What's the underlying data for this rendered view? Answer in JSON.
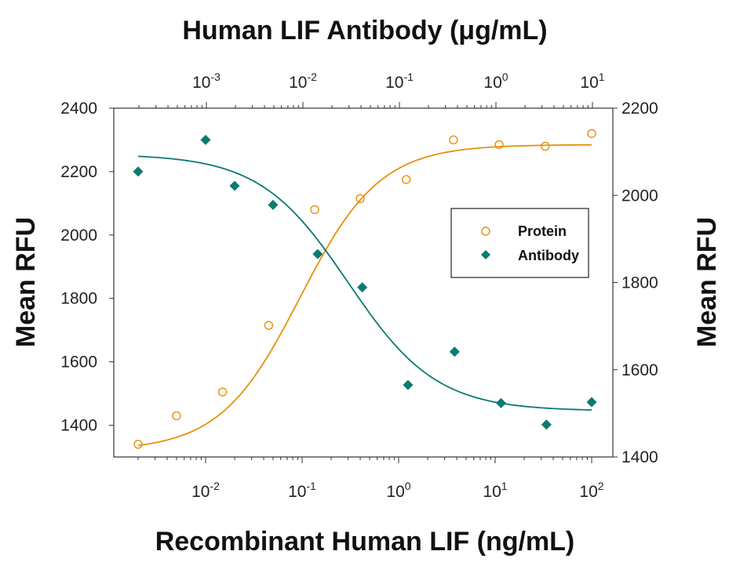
{
  "colors": {
    "protein": "#E8900A",
    "antibody": "#0B7A72",
    "axis": "#333333"
  },
  "chart_data": {
    "type": "scatter",
    "title": "Human LIF Antibody (μg/mL)",
    "xlabel": "Recombinant Human LIF (ng/mL)",
    "ylabel_left": "Mean RFU",
    "ylabel_right": "Mean RFU",
    "x_scale": "log",
    "xlim": [
      0.001,
      200
    ],
    "x_ticks": [
      {
        "base": "10",
        "exp": "-2",
        "value": 0.01
      },
      {
        "base": "10",
        "exp": "-1",
        "value": 0.1
      },
      {
        "base": "10",
        "exp": "0",
        "value": 1
      },
      {
        "base": "10",
        "exp": "1",
        "value": 10
      },
      {
        "base": "10",
        "exp": "2",
        "value": 100
      }
    ],
    "top_axis": {
      "scale": "log",
      "ticks": [
        {
          "base": "10",
          "exp": "-3",
          "value": 0.001
        },
        {
          "base": "10",
          "exp": "-2",
          "value": 0.01
        },
        {
          "base": "10",
          "exp": "-1",
          "value": 0.1
        },
        {
          "base": "10",
          "exp": "0",
          "value": 1
        },
        {
          "base": "10",
          "exp": "1",
          "value": 10
        }
      ]
    },
    "ylim_left": [
      1300,
      2400
    ],
    "y_ticks_left": [
      "1400",
      "1600",
      "1800",
      "2000",
      "2200",
      "2400"
    ],
    "ylim_right": [
      1400,
      2200
    ],
    "y_ticks_right": [
      "1400",
      "1600",
      "1800",
      "2000",
      "2200"
    ],
    "legend": {
      "placement": "right-center",
      "entries": [
        "Protein",
        "Antibody"
      ]
    },
    "series": [
      {
        "name": "Protein",
        "axis": "left",
        "marker": "open-circle",
        "x": [
          0.002,
          0.005,
          0.015,
          0.045,
          0.135,
          0.4,
          1.2,
          3.7,
          11,
          33,
          100
        ],
        "y": [
          1340,
          1430,
          1505,
          1715,
          2080,
          2115,
          2175,
          2300,
          2285,
          2280,
          2320
        ],
        "fit": {
          "bottom": 1320,
          "top": 2285,
          "ec50": 0.095,
          "hill": 1.05
        }
      },
      {
        "name": "Antibody",
        "axis": "left",
        "marker": "filled-diamond",
        "x": [
          0.002,
          0.01,
          0.02,
          0.05,
          0.145,
          0.42,
          1.25,
          3.8,
          11.5,
          34,
          100
        ],
        "y": [
          2200,
          2300,
          2155,
          2095,
          1940,
          1835,
          1527,
          1632,
          1470,
          1402,
          1473
        ],
        "fit": {
          "top": 2255,
          "bottom": 1445,
          "ec50": 0.3,
          "hill": 0.95
        }
      }
    ]
  }
}
